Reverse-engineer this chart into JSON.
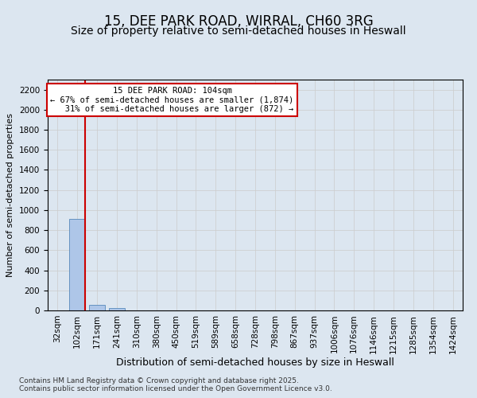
{
  "title": "15, DEE PARK ROAD, WIRRAL, CH60 3RG",
  "subtitle": "Size of property relative to semi-detached houses in Heswall",
  "xlabel": "Distribution of semi-detached houses by size in Heswall",
  "ylabel": "Number of semi-detached properties",
  "categories": [
    "32sqm",
    "102sqm",
    "171sqm",
    "241sqm",
    "310sqm",
    "380sqm",
    "450sqm",
    "519sqm",
    "589sqm",
    "658sqm",
    "728sqm",
    "798sqm",
    "867sqm",
    "937sqm",
    "1006sqm",
    "1076sqm",
    "1146sqm",
    "1215sqm",
    "1285sqm",
    "1354sqm",
    "1424sqm"
  ],
  "values": [
    0,
    910,
    55,
    25,
    0,
    0,
    0,
    0,
    0,
    0,
    0,
    0,
    0,
    0,
    0,
    0,
    0,
    0,
    0,
    0,
    0
  ],
  "bar_color": "#aec6e8",
  "bar_edge_color": "#5588bb",
  "vline_color": "#cc0000",
  "annotation_box_text": "15 DEE PARK ROAD: 104sqm\n← 67% of semi-detached houses are smaller (1,874)\n   31% of semi-detached houses are larger (872) →",
  "box_edge_color": "#cc0000",
  "ylim": [
    0,
    2300
  ],
  "yticks": [
    0,
    200,
    400,
    600,
    800,
    1000,
    1200,
    1400,
    1600,
    1800,
    2000,
    2200
  ],
  "grid_color": "#cccccc",
  "background_color": "#dce6f0",
  "plot_bg_color": "#dce6f0",
  "footer_line1": "Contains HM Land Registry data © Crown copyright and database right 2025.",
  "footer_line2": "Contains public sector information licensed under the Open Government Licence v3.0.",
  "title_fontsize": 12,
  "subtitle_fontsize": 10,
  "xlabel_fontsize": 9,
  "ylabel_fontsize": 8,
  "tick_fontsize": 7.5,
  "footer_fontsize": 6.5
}
